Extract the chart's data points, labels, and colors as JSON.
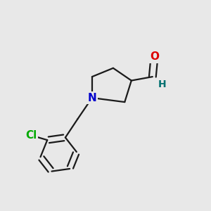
{
  "background_color": "#e8e8e8",
  "bond_color": "#1a1a1a",
  "bond_lw": 1.6,
  "atom_colors": {
    "N": "#0000cc",
    "O": "#dd0000",
    "Cl": "#00aa00",
    "H": "#007070"
  },
  "font_size_atom": 11,
  "font_size_H": 10,
  "figsize": [
    3.0,
    3.0
  ],
  "dpi": 100,
  "xlim": [
    -0.05,
    1.05
  ],
  "ylim": [
    -0.05,
    1.05
  ]
}
